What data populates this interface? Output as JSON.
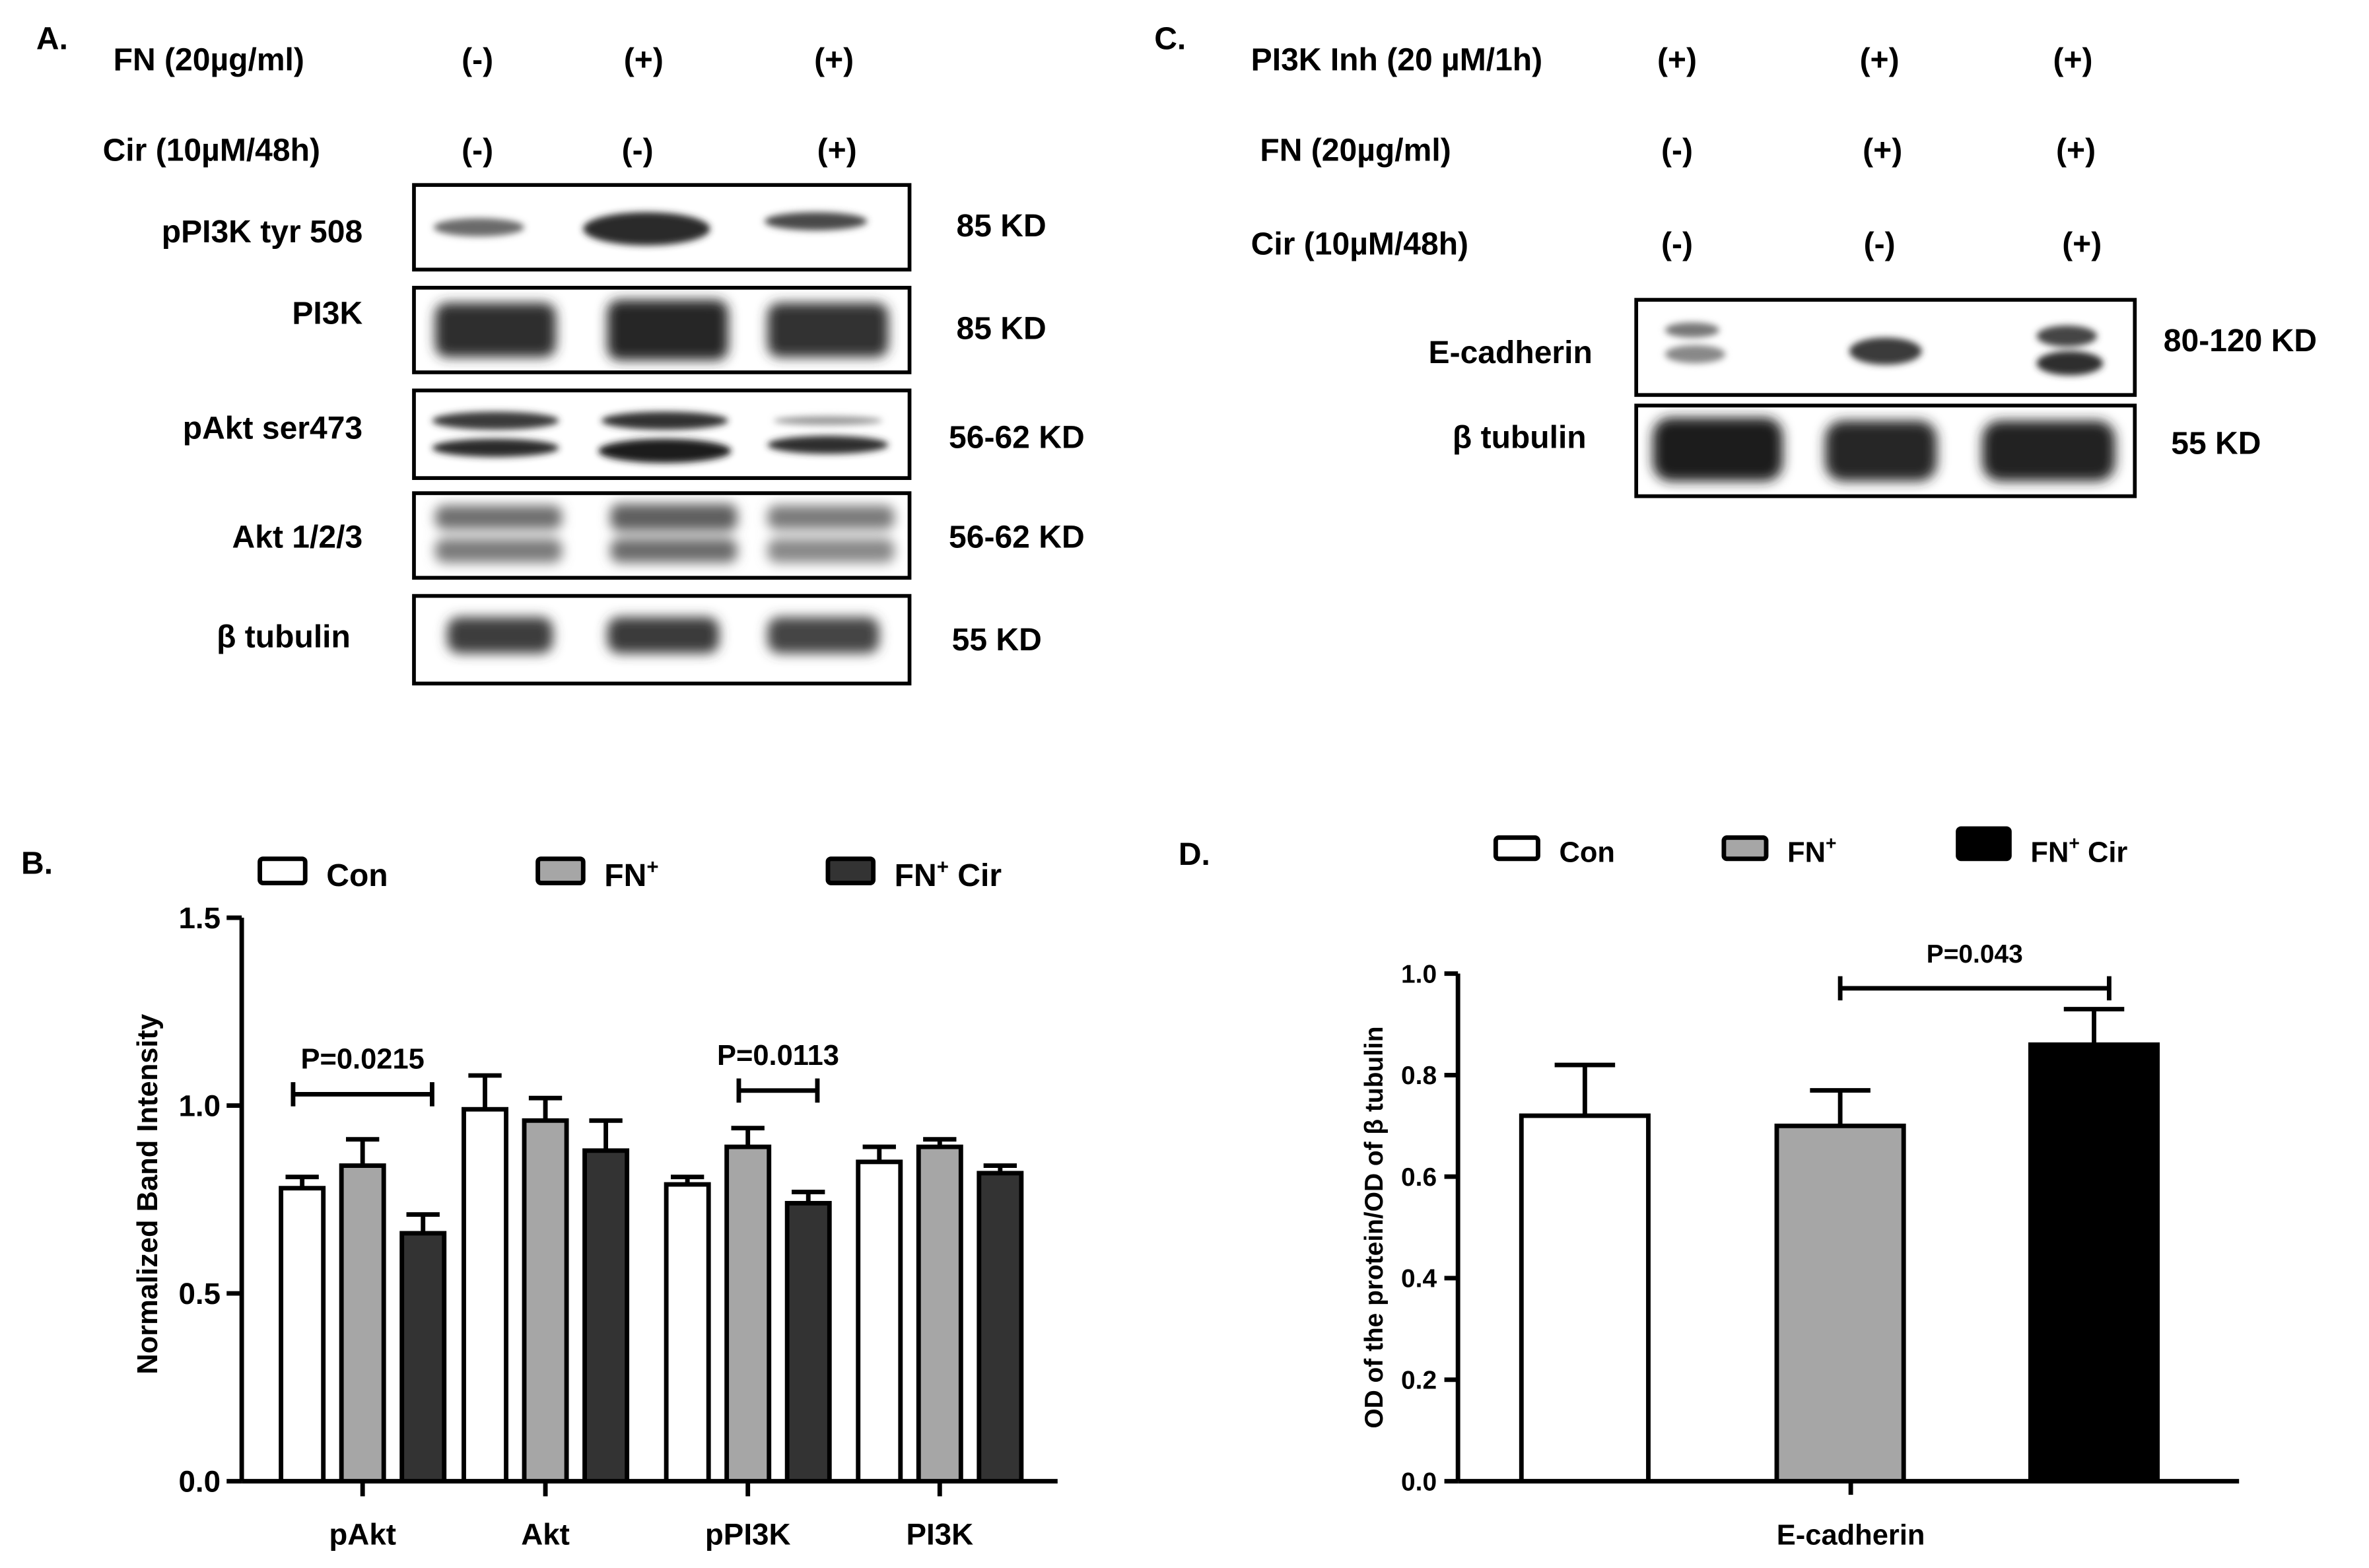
{
  "panel_a": {
    "letter": "A.",
    "conditions": [
      {
        "label": "FN (20µg/ml)",
        "values": [
          "(-)",
          "(+)",
          "(+)"
        ]
      },
      {
        "label": "Cir (10µM/48h)",
        "values": [
          "(-)",
          "(-)",
          "(+)"
        ]
      }
    ],
    "blots": [
      {
        "label": "pPI3K tyr 508",
        "size": "85 KD"
      },
      {
        "label": "PI3K",
        "size": "85 KD"
      },
      {
        "label": "pAkt  ser473",
        "size": "56-62 KD"
      },
      {
        "label": "Akt  1/2/3",
        "size": "56-62 KD"
      },
      {
        "label": "β tubulin",
        "size": "55 KD"
      }
    ]
  },
  "panel_c": {
    "letter": "C.",
    "conditions": [
      {
        "label": "PI3K Inh (20 µM/1h)",
        "values": [
          "(+)",
          "(+)",
          "(+)"
        ]
      },
      {
        "label": "FN (20µg/ml)",
        "values": [
          "(-)",
          "(+)",
          "(+)"
        ]
      },
      {
        "label": "Cir (10µM/48h)",
        "values": [
          "(-)",
          "(-)",
          "(+)"
        ]
      }
    ],
    "blots": [
      {
        "label": "E-cadherin",
        "size": "80-120 KD"
      },
      {
        "label": "β tubulin",
        "size": "55 KD"
      }
    ]
  },
  "colors": {
    "con": "#ffffff",
    "fn": "#a6a6a6",
    "fn_cir_b": "#333333",
    "fn_cir_d": "#000000"
  },
  "chart_data": [
    {
      "panel": "B.",
      "type": "bar",
      "ylabel": "Normalized Band Intensity",
      "ylim": [
        0,
        1.5
      ],
      "yticks": [
        "0.0",
        "0.5",
        "1.0",
        "1.5"
      ],
      "legend_position": "top",
      "legend": [
        {
          "name": "Con",
          "sup": "",
          "suffix": ""
        },
        {
          "name": "FN",
          "sup": "+",
          "suffix": ""
        },
        {
          "name": "FN",
          "sup": "+",
          "suffix": " Cir"
        }
      ],
      "categories": [
        "pAkt",
        "Akt",
        "pPI3K",
        "PI3K"
      ],
      "series": [
        {
          "values": [
            0.78,
            0.99,
            0.79,
            0.85
          ],
          "errors": [
            0.03,
            0.09,
            0.02,
            0.04
          ]
        },
        {
          "values": [
            0.84,
            0.96,
            0.89,
            0.89
          ],
          "errors": [
            0.07,
            0.06,
            0.05,
            0.02
          ]
        },
        {
          "values": [
            0.66,
            0.88,
            0.74,
            0.82
          ],
          "errors": [
            0.05,
            0.08,
            0.03,
            0.02
          ]
        }
      ],
      "annotations": [
        {
          "text": "P=0.0215",
          "category": 0,
          "from_series": 0,
          "to_series": 2,
          "y": 1.03
        },
        {
          "text": "P=0.0113",
          "category": 2,
          "from_series": 1,
          "to_series": 2,
          "y": 1.04
        }
      ]
    },
    {
      "panel": "D.",
      "type": "bar",
      "ylabel": "OD of the protein/OD of  β tubulin",
      "xlabel": "E-cadherin",
      "ylim": [
        0,
        1.0
      ],
      "yticks": [
        "0.0",
        "0.2",
        "0.4",
        "0.6",
        "0.8",
        "1.0"
      ],
      "legend_position": "top",
      "legend": [
        {
          "name": "Con",
          "sup": "",
          "suffix": ""
        },
        {
          "name": "FN",
          "sup": "+",
          "suffix": ""
        },
        {
          "name": "FN",
          "sup": "+",
          "suffix": " Cir"
        }
      ],
      "series": [
        {
          "value": 0.72,
          "error": 0.1
        },
        {
          "value": 0.7,
          "error": 0.07
        },
        {
          "value": 0.86,
          "error": 0.07
        }
      ],
      "annotations": [
        {
          "text": "P=0.043",
          "from_series": 1,
          "to_series": 2,
          "y": 0.98
        }
      ]
    }
  ]
}
